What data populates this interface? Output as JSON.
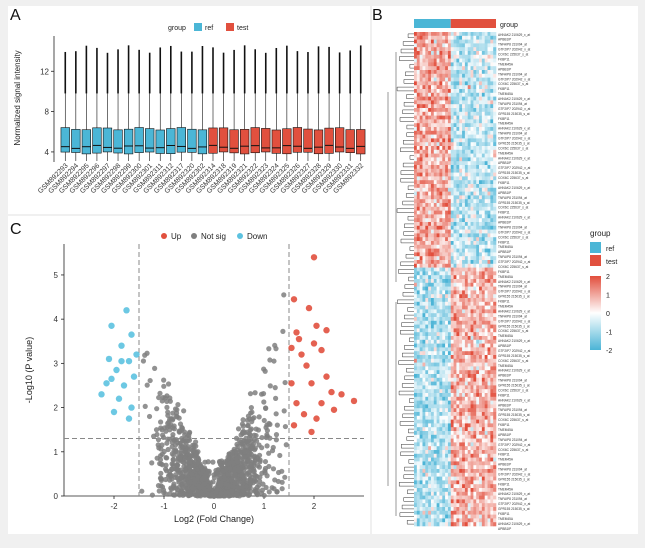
{
  "panels": {
    "A": {
      "letter": "A"
    },
    "B": {
      "letter": "B"
    },
    "C": {
      "letter": "C"
    }
  },
  "colors": {
    "ref": "#4bb6d6",
    "test": "#e1503e",
    "not_sig": "#7f7f7f",
    "up": "#e1503e",
    "down": "#5cc2e0"
  },
  "chart_data": [
    {
      "id": "A",
      "type": "box",
      "ylabel": "Normalized signal intensity",
      "ylim": [
        3,
        15.5
      ],
      "yticks": [
        4,
        8,
        12
      ],
      "legend": {
        "title": "group",
        "entries": [
          "ref",
          "test"
        ],
        "placement": "top"
      },
      "categories": [
        "GSM892293",
        "GSM892294",
        "GSM892295",
        "GSM892296",
        "GSM892297",
        "GSM892298",
        "GSM892299",
        "GSM892300",
        "GSM892301",
        "GSM892311",
        "GSM892312",
        "GSM892317",
        "GSM892320",
        "GSM892302",
        "GSM892314",
        "GSM892318",
        "GSM892319",
        "GSM892321",
        "GSM892322",
        "GSM892323",
        "GSM892324",
        "GSM892325",
        "GSM892326",
        "GSM892327",
        "GSM892328",
        "GSM892329",
        "GSM892330",
        "GSM892331",
        "GSM892332"
      ],
      "groups": [
        "ref",
        "ref",
        "ref",
        "ref",
        "ref",
        "ref",
        "ref",
        "ref",
        "ref",
        "ref",
        "ref",
        "ref",
        "ref",
        "ref",
        "test",
        "test",
        "test",
        "test",
        "test",
        "test",
        "test",
        "test",
        "test",
        "test",
        "test",
        "test",
        "test",
        "test",
        "test"
      ],
      "q1": 3.9,
      "median": 4.5,
      "q3": 6.3,
      "whisker_low": 3.1,
      "whisker_high": 9.8,
      "outlier_max": 14.2
    },
    {
      "id": "C",
      "type": "scatter",
      "xlabel": "Log2 (Fold Change)",
      "ylabel": "-Log10 (P value)",
      "xlim": [
        -3,
        3
      ],
      "ylim": [
        0,
        5.7
      ],
      "xticks": [
        -2,
        -1,
        0,
        1,
        2
      ],
      "yticks": [
        0,
        1,
        2,
        3,
        4,
        5
      ],
      "legend": {
        "entries": [
          "Up",
          "Not sig",
          "Down"
        ],
        "placement": "top"
      },
      "fc_threshold": 1.5,
      "p_threshold_log": 1.3,
      "series": [
        {
          "name": "Up",
          "points": [
            [
              2.0,
              5.4
            ],
            [
              1.6,
              4.45
            ],
            [
              1.9,
              4.25
            ],
            [
              2.05,
              3.85
            ],
            [
              1.65,
              3.7
            ],
            [
              2.15,
              3.3
            ],
            [
              1.75,
              3.2
            ],
            [
              1.85,
              2.95
            ],
            [
              2.25,
              2.7
            ],
            [
              1.55,
              2.55
            ],
            [
              1.95,
              2.55
            ],
            [
              2.35,
              2.35
            ],
            [
              1.65,
              2.1
            ],
            [
              2.15,
              2.1
            ],
            [
              2.55,
              2.3
            ],
            [
              2.8,
              2.15
            ],
            [
              2.4,
              1.95
            ],
            [
              1.8,
              1.85
            ],
            [
              2.05,
              1.75
            ],
            [
              1.6,
              1.6
            ],
            [
              1.95,
              1.45
            ],
            [
              1.7,
              3.55
            ],
            [
              2.25,
              3.75
            ],
            [
              1.55,
              3.35
            ],
            [
              2.0,
              3.45
            ]
          ]
        },
        {
          "name": "Down",
          "points": [
            [
              -1.75,
              4.2
            ],
            [
              -2.05,
              3.85
            ],
            [
              -1.65,
              3.65
            ],
            [
              -1.85,
              3.4
            ],
            [
              -2.1,
              3.1
            ],
            [
              -1.7,
              3.05
            ],
            [
              -1.95,
              2.85
            ],
            [
              -1.6,
              2.7
            ],
            [
              -2.15,
              2.55
            ],
            [
              -1.8,
              2.5
            ],
            [
              -2.25,
              2.3
            ],
            [
              -1.9,
              2.2
            ],
            [
              -1.65,
              2.0
            ],
            [
              -2.0,
              1.9
            ],
            [
              -1.7,
              1.75
            ],
            [
              -1.55,
              3.2
            ],
            [
              -1.85,
              3.05
            ],
            [
              -2.05,
              2.65
            ]
          ]
        }
      ]
    },
    {
      "id": "B",
      "type": "heatmap",
      "annotation": {
        "label": "group",
        "categories": [
          "ref",
          "test"
        ]
      },
      "legend": {
        "title": "group",
        "entries": [
          "ref",
          "test"
        ],
        "scale": [
          2,
          1,
          0,
          -1,
          -2
        ]
      },
      "row_labels_visible": [
        "AHNAK2 210629_x_at",
        "APBB1IP",
        "TNFAIP8 231094_at",
        "GTF2IP7 202942_x_at",
        "GPR155 215035_s_at",
        "COX6C 225637_s_at",
        "FKBP11",
        "TMEM45A"
      ]
    }
  ]
}
